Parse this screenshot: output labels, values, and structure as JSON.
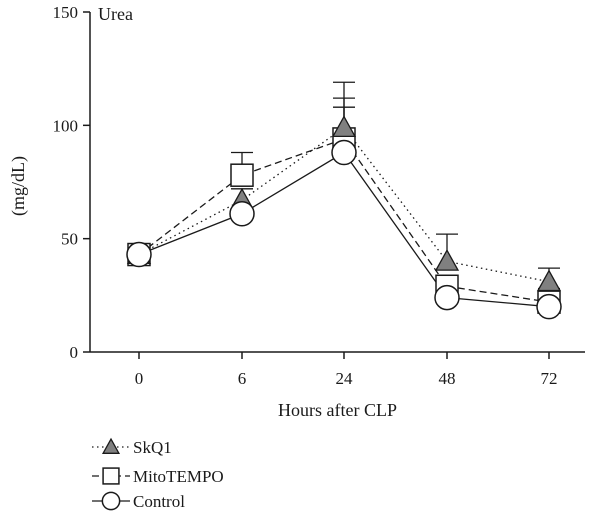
{
  "chart_data": {
    "type": "line",
    "title": "Urea",
    "xlabel": "Hours after CLP",
    "ylabel": "(mg/dL)",
    "categories": [
      "0",
      "6",
      "24",
      "48",
      "72"
    ],
    "ylim": [
      0,
      150
    ],
    "yticks": [
      0,
      50,
      100,
      150
    ],
    "grid": false,
    "legend_position": "bottom-left",
    "series": [
      {
        "name": "SkQ1",
        "marker": "triangle",
        "line_style": "dotted",
        "marker_fill": "#808080",
        "values": [
          43,
          67,
          99,
          40,
          31
        ],
        "error_upper": [
          null,
          72,
          119,
          52,
          37
        ]
      },
      {
        "name": "MitoTEMPO",
        "marker": "square",
        "line_style": "dashed",
        "marker_fill": "#ffffff",
        "values": [
          43,
          78,
          94,
          29,
          22
        ],
        "error_upper": [
          null,
          88,
          112,
          33,
          28
        ]
      },
      {
        "name": "Control",
        "marker": "circle",
        "line_style": "solid",
        "marker_fill": "#ffffff",
        "values": [
          43,
          61,
          88,
          24,
          20
        ],
        "error_upper": [
          null,
          null,
          108,
          null,
          null
        ]
      }
    ],
    "colors": {
      "line": "#1a1a1a",
      "background": "#ffffff"
    }
  }
}
